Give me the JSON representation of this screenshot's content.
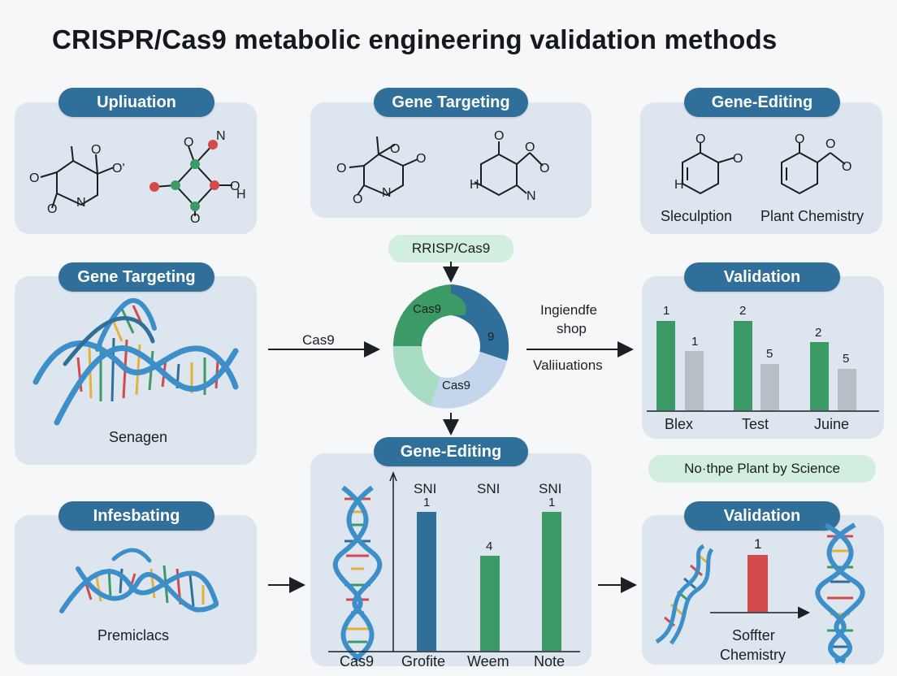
{
  "title": "CRISPR/Cas9 metabolic engineering validation methods",
  "panels": {
    "top_left": {
      "badge": "Upliuation"
    },
    "top_mid": {
      "badge": "Gene Targeting"
    },
    "top_right": {
      "badge": "Gene-Editing",
      "caption_left": "Sleculption",
      "caption_right": "Plant Chemistry"
    },
    "mid_left": {
      "badge": "Gene Targeting",
      "caption": "Senagen"
    },
    "mid_right": {
      "badge": "Validation",
      "groups": [
        {
          "label": "Blex",
          "tall_value": "1",
          "short_value": "1"
        },
        {
          "label": "Test",
          "tall_value": "2",
          "short_value": "5"
        },
        {
          "label": "Juine",
          "tall_value": "2",
          "short_value": "5"
        }
      ]
    },
    "bottom_left": {
      "badge": "Infesbating",
      "caption": "Premiclacs"
    },
    "bottom_mid": {
      "badge": "Gene-Editing",
      "cas9_label": "Cas9",
      "columns": [
        {
          "header": "SNI",
          "value": "1",
          "label": "Grofite",
          "color": "#2f6f9a"
        },
        {
          "header": "SNI",
          "value": "4",
          "label": "Weem",
          "color": "#3c9a66"
        },
        {
          "header": "SNI",
          "value": "1",
          "label": "Note",
          "color": "#3c9a66"
        }
      ]
    },
    "bottom_right": {
      "badge": "Validation",
      "bar_value": "1",
      "caption_line1": "Soffter",
      "caption_line2": "Chemistry"
    }
  },
  "center": {
    "top_tag": "RRISP/Cas9",
    "ring_labels": {
      "green": "Cas9",
      "blue": "9",
      "light": "Cas9"
    },
    "arrow_left_label": "Cas9",
    "arrow_right_label_line1": "Ingiendfe",
    "arrow_right_label_line2": "shop",
    "arrow_right_label_line3": "Valiiuations"
  },
  "side_tag": "No·thpe Plant by Science",
  "colors": {
    "badge": "#2f6f9a",
    "panel": "#dde5ee",
    "green": "#3c9a66",
    "blue": "#2f6f9a",
    "red": "#d24a4a",
    "grey": "#b8bec6"
  }
}
